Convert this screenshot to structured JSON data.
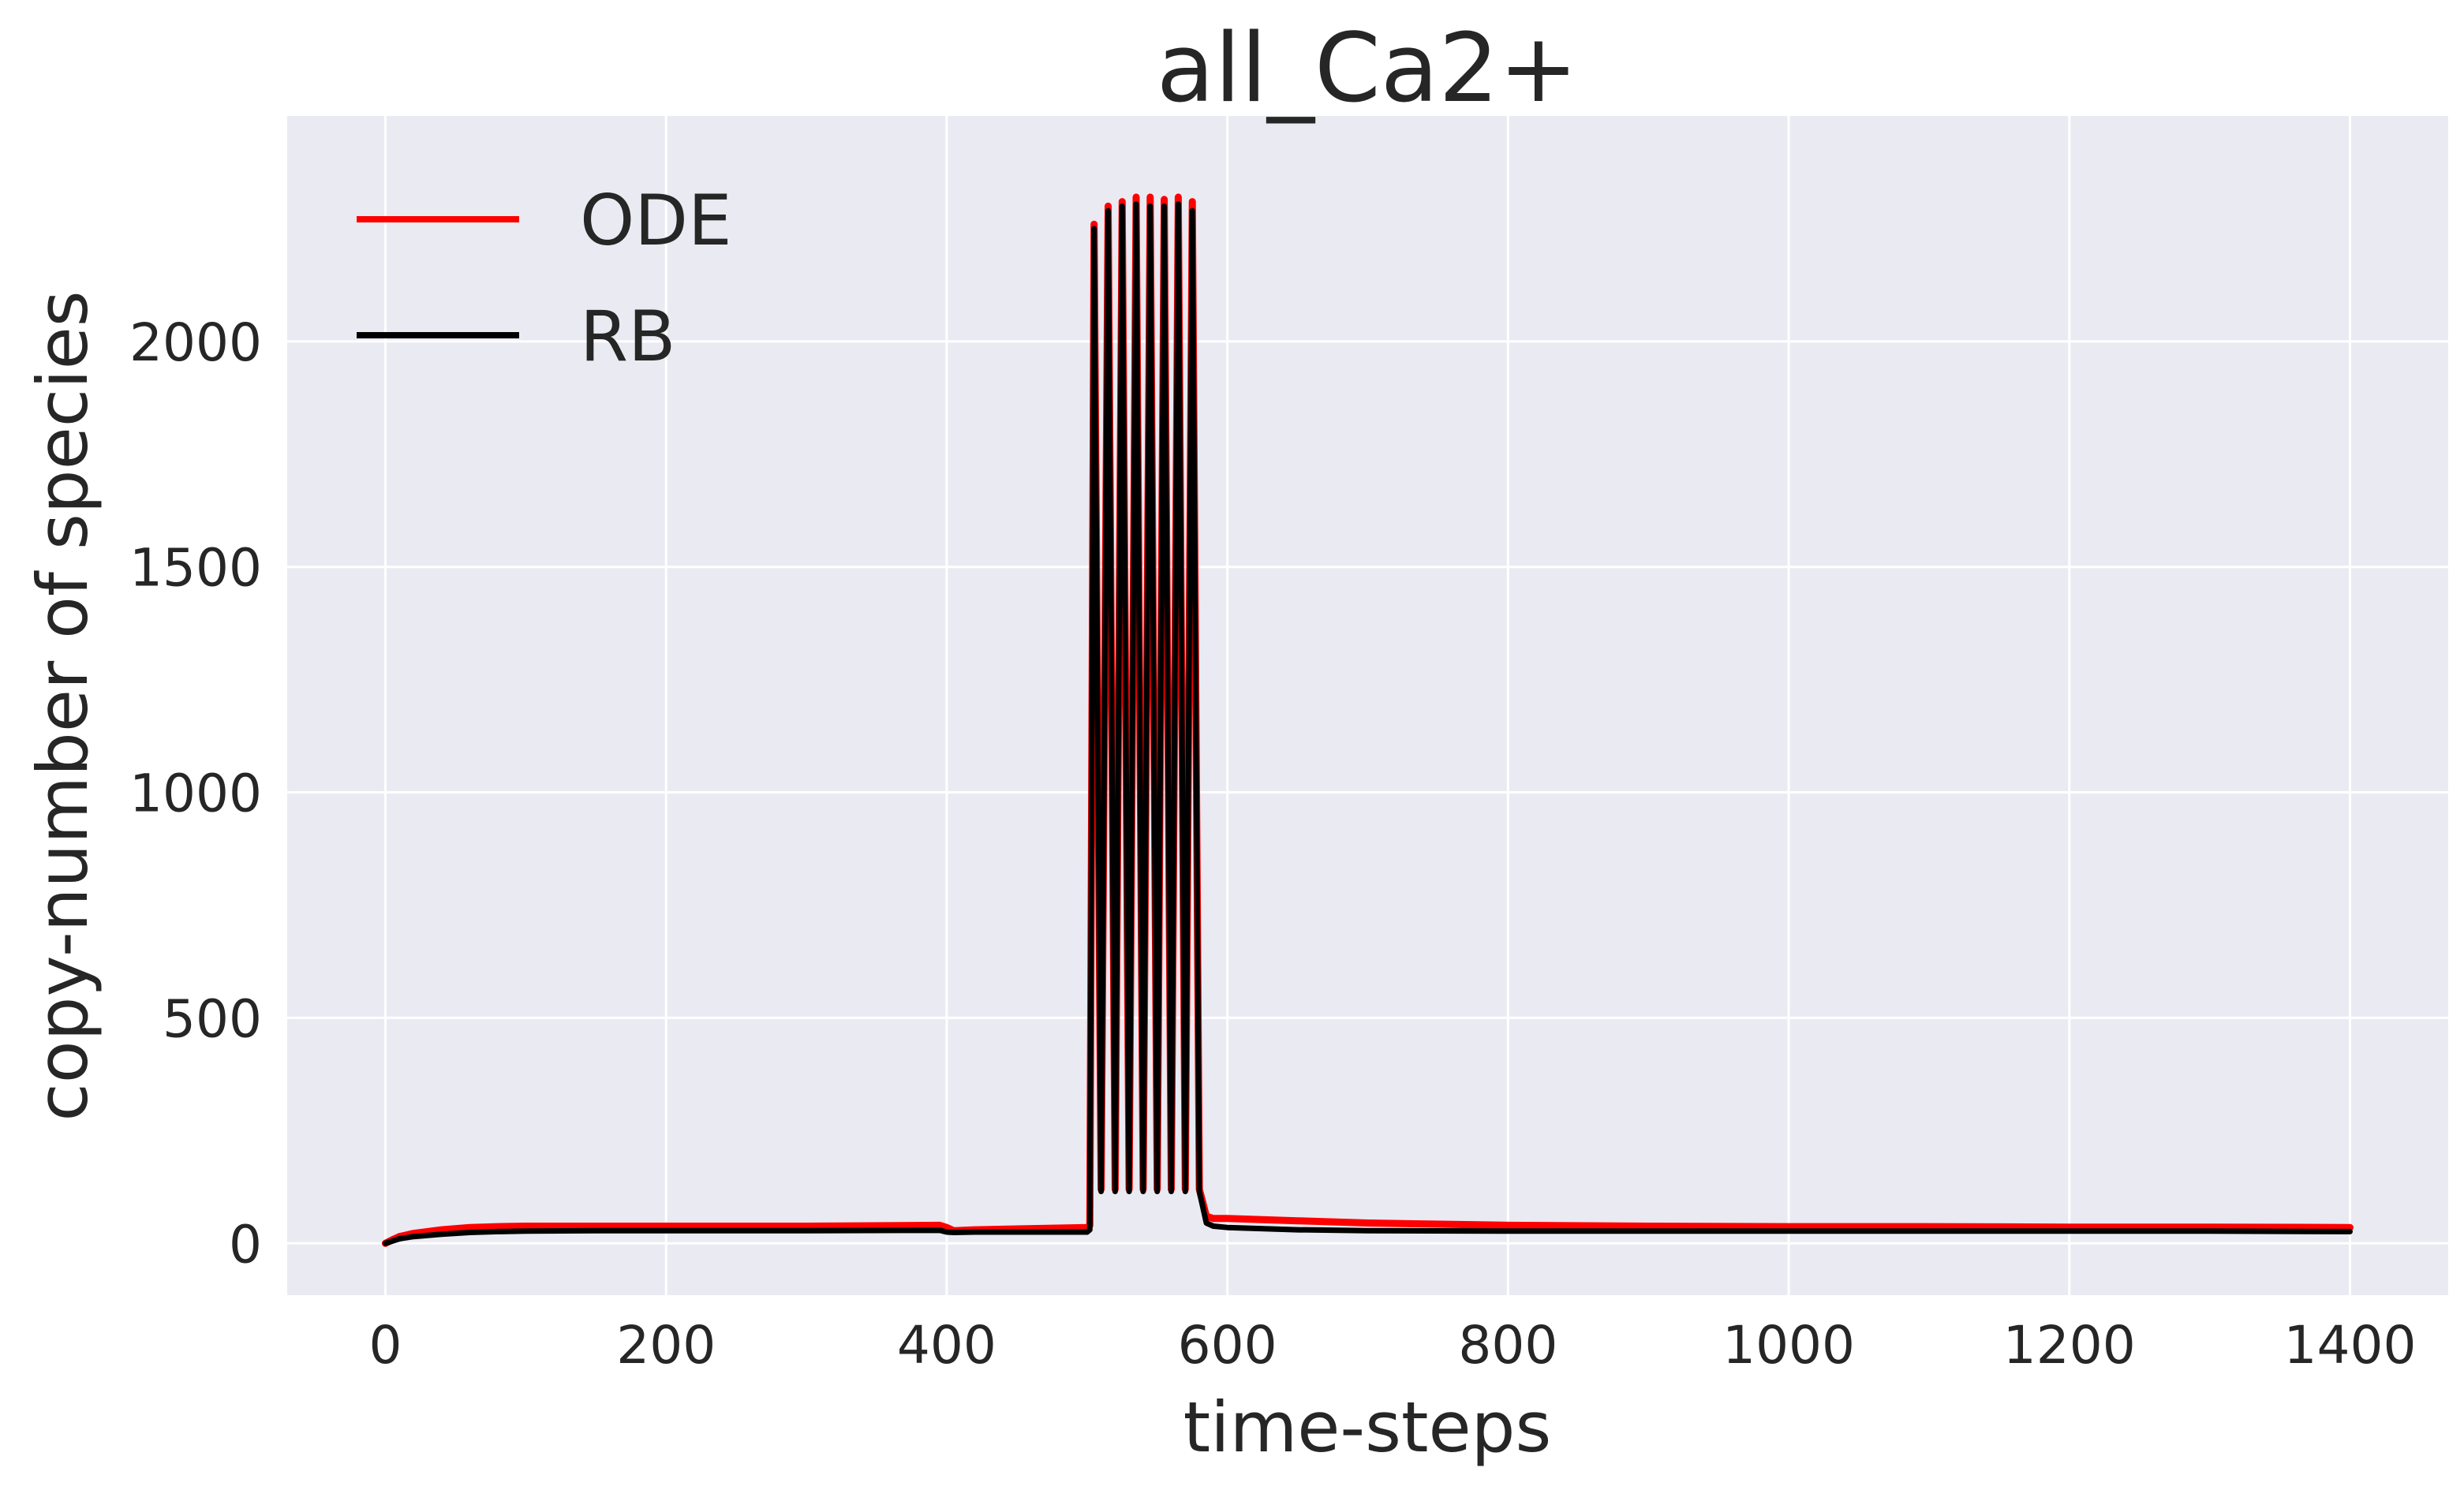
{
  "chart_data": {
    "type": "line",
    "title": "all_Ca2+",
    "xlabel": "time-steps",
    "ylabel": "copy-number of species",
    "xlim": [
      -70,
      1470
    ],
    "ylim": [
      -115,
      2500
    ],
    "xticks": [
      0,
      200,
      400,
      600,
      800,
      1000,
      1200,
      1400
    ],
    "yticks": [
      0,
      500,
      1000,
      1500,
      2000
    ],
    "grid": true,
    "legend_position": "top-left",
    "background_color": "#eaeaf2",
    "series": [
      {
        "name": "ODE",
        "color": "#ff0000",
        "x": [
          0,
          5,
          10,
          20,
          40,
          60,
          80,
          100,
          150,
          200,
          300,
          395,
          400,
          405,
          420,
          450,
          500,
          502,
          505,
          510,
          515,
          520,
          525,
          530,
          535,
          540,
          545,
          550,
          555,
          560,
          565,
          570,
          575,
          580,
          585,
          590,
          600,
          650,
          700,
          800,
          900,
          1000,
          1100,
          1200,
          1300,
          1400
        ],
        "y": [
          0,
          8,
          15,
          22,
          30,
          35,
          37,
          38,
          38,
          38,
          38,
          40,
          35,
          28,
          30,
          32,
          35,
          40,
          2260,
          120,
          2300,
          120,
          2310,
          120,
          2320,
          120,
          2320,
          120,
          2315,
          120,
          2320,
          120,
          2310,
          120,
          60,
          55,
          55,
          50,
          45,
          40,
          38,
          37,
          37,
          36,
          36,
          35
        ]
      },
      {
        "name": "RB",
        "color": "#000000",
        "x": [
          0,
          5,
          10,
          20,
          40,
          60,
          80,
          100,
          150,
          200,
          300,
          395,
          400,
          405,
          420,
          450,
          500,
          502,
          505,
          510,
          515,
          520,
          525,
          530,
          535,
          540,
          545,
          550,
          555,
          560,
          565,
          570,
          575,
          580,
          585,
          590,
          600,
          650,
          700,
          800,
          900,
          1000,
          1100,
          1200,
          1300,
          1400
        ],
        "y": [
          0,
          5,
          10,
          15,
          20,
          24,
          26,
          27,
          28,
          28,
          28,
          29,
          25,
          24,
          25,
          25,
          25,
          30,
          2250,
          115,
          2290,
          115,
          2300,
          115,
          2305,
          115,
          2300,
          115,
          2300,
          115,
          2305,
          115,
          2290,
          115,
          45,
          38,
          35,
          30,
          28,
          27,
          27,
          27,
          27,
          27,
          27,
          26
        ]
      }
    ]
  }
}
